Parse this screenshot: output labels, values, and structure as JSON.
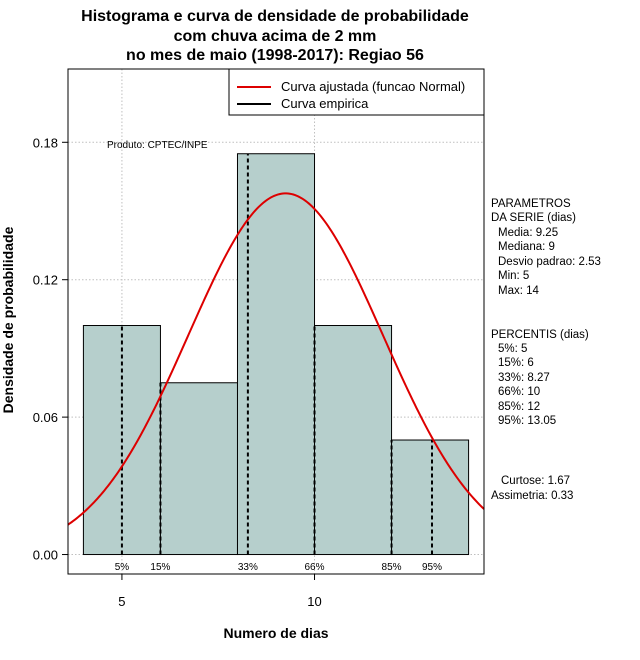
{
  "chart_data": {
    "type": "histogram",
    "title_lines": [
      "Histograma e curva de densidade de probabilidade",
      "com chuva acima de 2 mm",
      "no mes de maio (1998-2017): Regiao 56"
    ],
    "xlabel": "Numero de dias",
    "ylabel": "Densidade de probabilidade",
    "xlim": [
      3.6,
      14.4
    ],
    "ylim": [
      -0.0085,
      0.212
    ],
    "x_ticks": [
      5,
      10
    ],
    "y_ticks": [
      0.0,
      0.06,
      0.12,
      0.18
    ],
    "y_tick_labels": [
      "0.00",
      "0.06",
      "0.12",
      "0.18"
    ],
    "bins": [
      {
        "start": 4,
        "end": 6,
        "density": 0.1
      },
      {
        "start": 6,
        "end": 8,
        "density": 0.075
      },
      {
        "start": 8,
        "end": 10,
        "density": 0.175
      },
      {
        "start": 10,
        "end": 12,
        "density": 0.1
      },
      {
        "start": 12,
        "end": 14,
        "density": 0.05
      }
    ],
    "normal_fit": {
      "mean": 9.25,
      "sd": 2.53
    },
    "percentile_lines": [
      {
        "label": "5%",
        "x": 5
      },
      {
        "label": "15%",
        "x": 6
      },
      {
        "label": "33%",
        "x": 8.27
      },
      {
        "label": "66%",
        "x": 10
      },
      {
        "label": "85%",
        "x": 12
      },
      {
        "label": "95%",
        "x": 13.05
      }
    ],
    "legend": [
      {
        "label": "Curva ajustada (funcao Normal)",
        "color": "#dd0000"
      },
      {
        "label": "Curva empirica",
        "color": "#000000"
      }
    ],
    "annotation": "Produto: CPTEC/INPE",
    "bar_color": "#b6cfcc",
    "grid": true
  },
  "side_panel": {
    "params_title": [
      "PARAMETROS",
      "DA SERIE (dias)"
    ],
    "params": [
      "Media: 9.25",
      "Mediana: 9",
      "Desvio padrao: 2.53",
      "Min: 5",
      "Max: 14"
    ],
    "percentis_title": "PERCENTIS (dias)",
    "percentis": [
      "5%: 5",
      "15%: 6",
      "33%: 8.27",
      "66%: 10",
      "85%: 12",
      "95%: 13.05"
    ],
    "curtose": "Curtose: 1.67",
    "assimetria": "Assimetria: 0.33"
  }
}
